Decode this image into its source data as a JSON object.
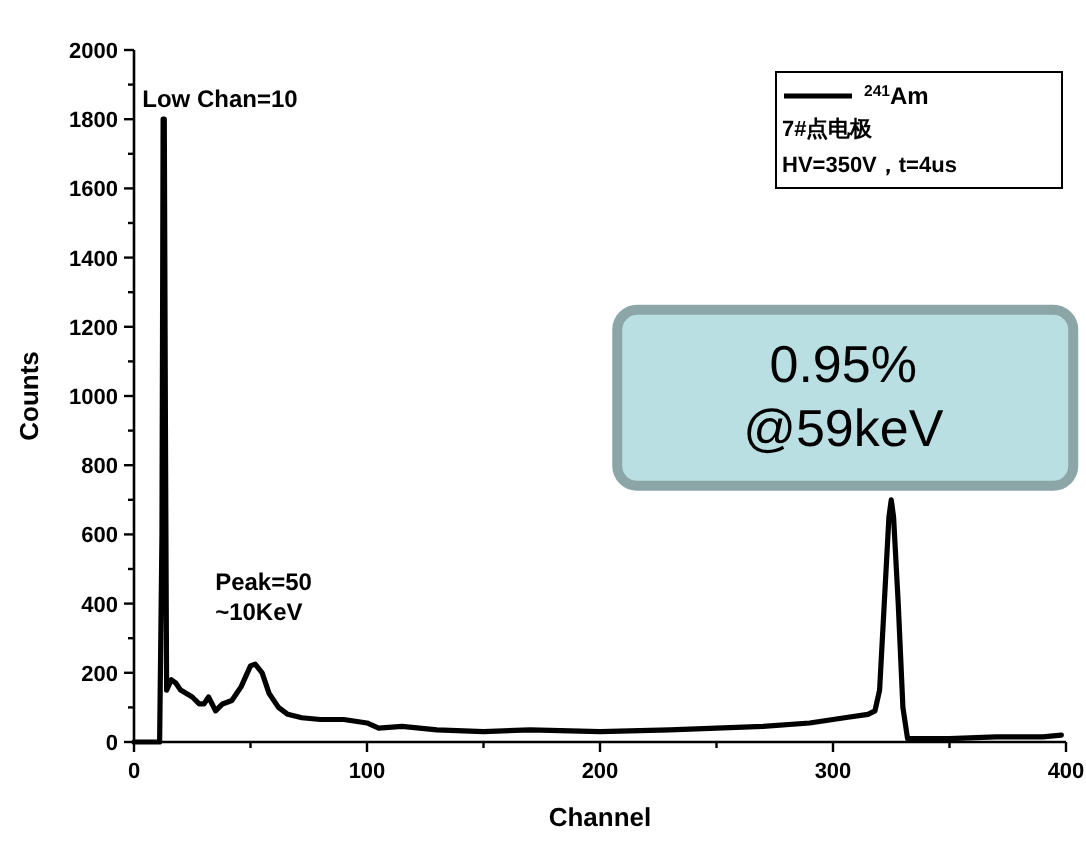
{
  "chart_data": {
    "type": "line",
    "xlabel": "Channel",
    "ylabel": "Counts",
    "x": [
      0,
      10,
      11,
      12,
      12.5,
      13,
      13.5,
      14,
      16,
      18,
      20,
      25,
      28,
      30,
      32,
      35,
      38,
      42,
      46,
      50,
      52,
      55,
      58,
      62,
      66,
      72,
      80,
      90,
      100,
      105,
      115,
      130,
      150,
      170,
      200,
      230,
      250,
      270,
      290,
      305,
      315,
      318,
      320,
      322,
      324,
      325,
      326,
      328,
      330,
      332,
      340,
      350,
      370,
      390,
      398
    ],
    "series": [
      {
        "name": "$^{241}$Am",
        "color": "#000000",
        "values": [
          0,
          0,
          0,
          600,
          1800,
          1800,
          900,
          150,
          180,
          170,
          150,
          130,
          110,
          110,
          130,
          90,
          110,
          120,
          160,
          220,
          225,
          200,
          140,
          100,
          80,
          70,
          65,
          65,
          55,
          40,
          45,
          35,
          30,
          35,
          30,
          35,
          40,
          45,
          55,
          70,
          80,
          90,
          150,
          400,
          650,
          700,
          650,
          400,
          100,
          10,
          10,
          10,
          15,
          15,
          20
        ]
      }
    ],
    "xlim": [
      0,
      400
    ],
    "ylim": [
      0,
      2000
    ],
    "xticks": [
      0,
      {
        "value": 50,
        "label": null
      },
      100,
      {
        "value": 150,
        "label": null
      },
      200,
      {
        "value": 250,
        "label": null
      },
      300,
      {
        "value": 350,
        "label": null
      },
      400
    ],
    "yticks": [
      0,
      {
        "value": 100,
        "label": null
      },
      200,
      {
        "value": 300,
        "label": null
      },
      400,
      {
        "value": 500,
        "label": null
      },
      600,
      {
        "value": 700,
        "label": null
      },
      800,
      {
        "value": 900,
        "label": null
      },
      1000,
      {
        "value": 1100,
        "label": null
      },
      1200,
      {
        "value": 1300,
        "label": null
      },
      1400,
      {
        "value": 1500,
        "label": null
      },
      1600,
      {
        "value": 1700,
        "label": null
      },
      1800,
      {
        "value": 1900,
        "label": null
      },
      2000
    ],
    "legend": "top right",
    "grid": false,
    "marker": "none",
    "line_style": "solid",
    "legend_title": "7#点电极\nHV=350V，t=4us",
    "annotations": [
      {
        "text": "Low Chan=10",
        "x": 13,
        "y": 1800
      },
      {
        "text": "Peak=50\n~10KeV",
        "x": 52,
        "y": 225
      },
      {
        "text": "0.95%\n@59keV",
        "x": 325,
        "y": 700
      }
    ]
  }
}
